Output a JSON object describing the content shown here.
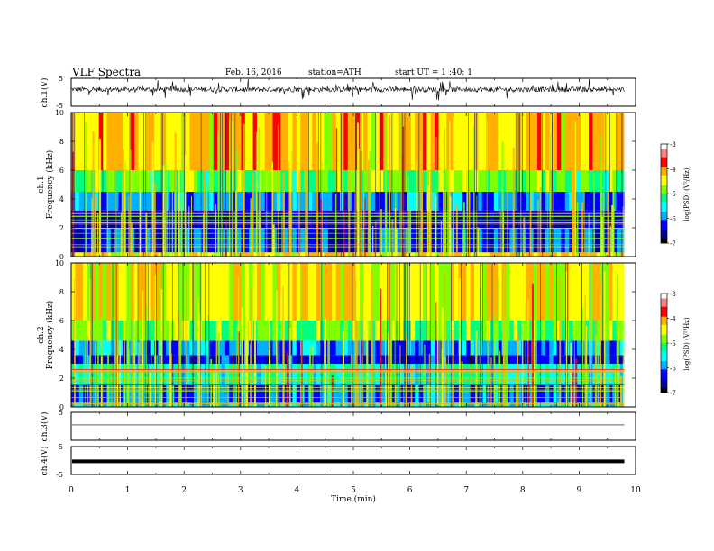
{
  "header": {
    "title": "VLF  Spectra",
    "date": "Feb. 16, 2016",
    "station": "station=ATH",
    "start": "start  UT =   1 :40: 1"
  },
  "chart_data": {
    "type": "heatmap",
    "xlabel": "Time (min)",
    "xlim": [
      0,
      10
    ],
    "x_ticks": [
      "0",
      "1",
      "2",
      "3",
      "4",
      "5",
      "6",
      "7",
      "8",
      "9",
      "10"
    ],
    "time_recorded_end_min": 9.8,
    "panels": [
      {
        "id": "ch1-waveform",
        "kind": "waveform",
        "ylabel": "ch.1(V)",
        "ylim": [
          -5,
          5
        ],
        "y_ticks": [
          "5",
          "-5"
        ],
        "trace": "noisy",
        "baseline_v": 1.0,
        "color": "#000000"
      },
      {
        "id": "ch1-spectrogram",
        "kind": "spectrogram",
        "ylabel_top": "ch.1",
        "ylabel": "Frequency (kHz)",
        "ylim": [
          0,
          10
        ],
        "y_ticks": [
          "0",
          "2",
          "4",
          "6",
          "8",
          "10"
        ],
        "band_edges_khz": [
          0,
          0.3,
          2.0,
          3.2,
          4.5,
          6.0,
          10
        ],
        "band_log_psd": [
          -4.2,
          -6.5,
          -6.9,
          -6.2,
          -5.0,
          -4.1
        ],
        "colorbar": {
          "label": "log(PSD) (V²/Hz)",
          "range": [
            -7,
            -3
          ],
          "ticks": [
            "-3",
            "-4",
            "-5",
            "-6",
            "-7"
          ]
        }
      },
      {
        "id": "ch2-spectrogram",
        "kind": "spectrogram",
        "ylabel_top": "ch.2",
        "ylabel": "Frequency (kHz)",
        "ylim": [
          0,
          10
        ],
        "y_ticks": [
          "0",
          "2",
          "4",
          "6",
          "8",
          "10"
        ],
        "band_edges_khz": [
          0,
          0.3,
          1.5,
          3.0,
          3.6,
          4.6,
          6.0,
          10
        ],
        "band_log_psd": [
          -5.8,
          -6.3,
          -5.5,
          -6.7,
          -6.1,
          -4.9,
          -4.3
        ],
        "colorbar": {
          "label": "log(PSD) (V²/Hz)",
          "range": [
            -7,
            -3
          ],
          "ticks": [
            "-3",
            "-4",
            "-5",
            "-6",
            "-7"
          ]
        }
      },
      {
        "id": "ch3-waveform",
        "kind": "waveform",
        "ylabel": "ch.3(V)",
        "ylim": [
          -5,
          5
        ],
        "y_ticks": [
          "5",
          "-5"
        ],
        "trace": "flat",
        "baseline_v": 0.5,
        "color": "#000000"
      },
      {
        "id": "ch4-waveform",
        "kind": "waveform",
        "ylabel": "ch.4(V)",
        "ylim": [
          -5,
          5
        ],
        "y_ticks": [
          "5",
          "-5"
        ],
        "trace": "thick-flat",
        "baseline_v": -0.3,
        "color": "#000000"
      }
    ],
    "colormap": [
      "#000000",
      "#0000a0",
      "#0000ff",
      "#00b0ff",
      "#00ffff",
      "#00ff80",
      "#80ff00",
      "#ffff00",
      "#ffb000",
      "#ff0000",
      "#ff8080",
      "#ffffff"
    ]
  }
}
